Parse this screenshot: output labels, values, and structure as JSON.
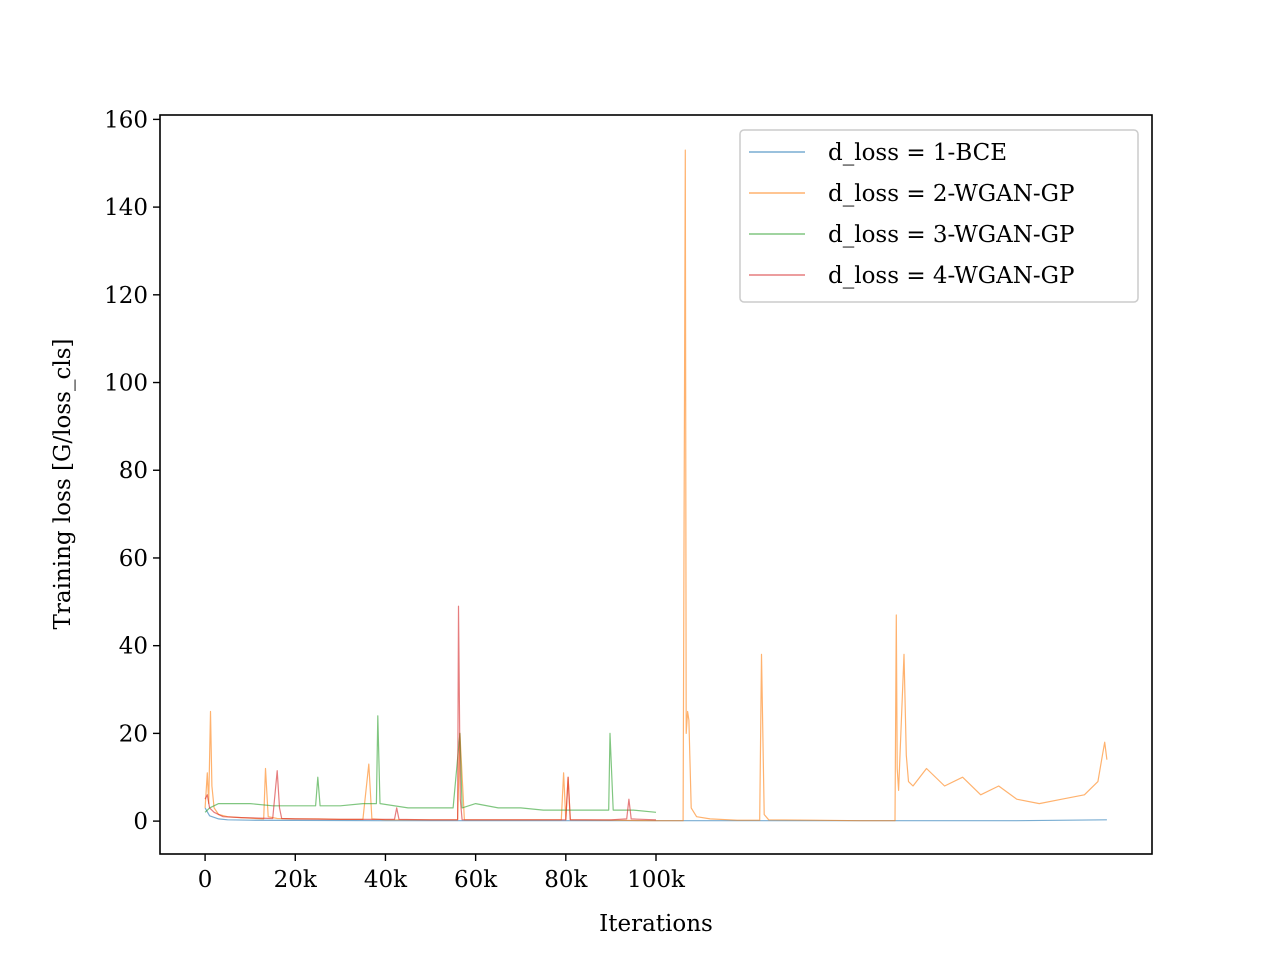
{
  "chart_data": {
    "type": "line",
    "title": "",
    "xlabel": "Iterations",
    "ylabel": "Training loss [G/loss_cls]",
    "xlim": [
      -10000,
      210000
    ],
    "ylim": [
      -7.5,
      161
    ],
    "x_ticks": [
      0,
      20000,
      40000,
      60000,
      80000,
      100000
    ],
    "x_tick_labels": [
      "0",
      "20k",
      "40k",
      "60k",
      "80k",
      "100k"
    ],
    "y_ticks": [
      0,
      20,
      40,
      60,
      80,
      100,
      120,
      140,
      160
    ],
    "y_tick_labels": [
      "0",
      "20",
      "40",
      "60",
      "80",
      "100",
      "120",
      "140",
      "160"
    ],
    "grid": false,
    "legend_position": "top-right",
    "series": [
      {
        "name": "d_loss = 1-BCE",
        "color": "#1f77b4",
        "x": [
          0,
          1000,
          3000,
          5000,
          10000,
          20000,
          40000,
          60000,
          80000,
          100000,
          120000,
          140000,
          160000,
          180000,
          200000
        ],
        "y": [
          3.0,
          1.2,
          0.5,
          0.3,
          0.2,
          0.15,
          0.1,
          0.1,
          0.1,
          0.1,
          0.1,
          0.1,
          0.1,
          0.1,
          0.3
        ]
      },
      {
        "name": "d_loss = 2-WGAN-GP",
        "color": "#ff7f0e",
        "x": [
          0,
          500,
          800,
          1200,
          1500,
          2000,
          3000,
          5000,
          8000,
          13000,
          13400,
          14000,
          16000,
          20000,
          25000,
          30000,
          35000,
          36300,
          37000,
          40000,
          50000,
          56000,
          56500,
          57500,
          60000,
          70000,
          79000,
          79500,
          80000,
          80500,
          81000,
          90000,
          100000,
          106000,
          106500,
          106700,
          107000,
          107300,
          107800,
          109000,
          112000,
          118000,
          123000,
          123400,
          124000,
          125000,
          135000,
          145000,
          153000,
          153300,
          153500,
          153800,
          155000,
          155500,
          156000,
          157000,
          160000,
          164000,
          168000,
          172000,
          176000,
          180000,
          185000,
          190000,
          195000,
          198000,
          199000,
          199500,
          200000
        ],
        "y": [
          3,
          11,
          4,
          25,
          8,
          3,
          1.5,
          1,
          0.8,
          0.5,
          12,
          1,
          0.6,
          0.5,
          0.5,
          0.4,
          0.4,
          13,
          0.5,
          0.3,
          0.3,
          0.3,
          20,
          0.3,
          0.3,
          0.3,
          0.3,
          11,
          0.3,
          10,
          0.3,
          0.2,
          0.1,
          0.1,
          153,
          20,
          25,
          23,
          3,
          1,
          0.5,
          0.2,
          0.2,
          38,
          1.5,
          0.3,
          0.2,
          0.1,
          0.1,
          47,
          12,
          7,
          38,
          15,
          9,
          8,
          12,
          8,
          10,
          6,
          8,
          5,
          4,
          5,
          6,
          9,
          15,
          18,
          14
        ]
      },
      {
        "name": "d_loss = 3-WGAN-GP",
        "color": "#2ca02c",
        "x": [
          0,
          1000,
          3000,
          5000,
          10000,
          15000,
          20000,
          24500,
          25000,
          25500,
          30000,
          35000,
          38000,
          38300,
          38800,
          45000,
          50000,
          55000,
          56500,
          57000,
          60000,
          65000,
          70000,
          75000,
          80000,
          85000,
          89500,
          89800,
          90500,
          95000,
          100000
        ],
        "y": [
          2,
          3,
          4,
          4,
          4,
          3.5,
          3.5,
          3.5,
          10,
          3.5,
          3.5,
          4,
          4,
          24,
          4,
          3,
          3,
          3,
          20,
          3,
          4,
          3,
          3,
          2.5,
          2.5,
          2.5,
          2.5,
          20,
          2.5,
          2.5,
          2
        ]
      },
      {
        "name": "d_loss = 4-WGAN-GP",
        "color": "#d62728",
        "x": [
          0,
          500,
          1000,
          2000,
          4000,
          8000,
          15000,
          16000,
          16500,
          17000,
          20000,
          30000,
          40000,
          42000,
          42500,
          43000,
          50000,
          56000,
          56200,
          56600,
          57000,
          60000,
          70000,
          80000,
          80500,
          81000,
          90000,
          93500,
          94000,
          94500,
          100000
        ],
        "y": [
          5,
          6,
          3,
          2,
          1,
          0.8,
          0.6,
          11.5,
          3,
          0.6,
          0.5,
          0.4,
          0.4,
          0.4,
          3,
          0.4,
          0.3,
          0.3,
          49,
          5,
          0.3,
          0.3,
          0.3,
          0.3,
          10,
          0.3,
          0.3,
          0.5,
          5,
          0.5,
          0.3
        ]
      }
    ]
  }
}
